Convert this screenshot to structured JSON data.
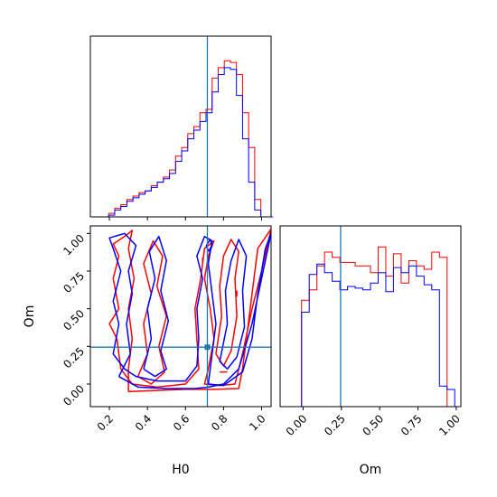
{
  "chart_data": {
    "type": "corner",
    "parameters": [
      "H0",
      "Om"
    ],
    "truth": {
      "H0": 0.715,
      "Om": 0.245,
      "color": "#1f77b4"
    },
    "series": [
      {
        "name": "",
        "color": "#ff0000"
      },
      {
        "name": "",
        "color": "#0000ff"
      }
    ],
    "panels": [
      {
        "id": "hist-H0",
        "type": "histogram",
        "xlim": [
          0.1,
          1.05
        ],
        "bin_edges": [
          0.1,
          0.132,
          0.164,
          0.196,
          0.228,
          0.26,
          0.292,
          0.324,
          0.356,
          0.388,
          0.42,
          0.452,
          0.484,
          0.516,
          0.548,
          0.58,
          0.612,
          0.644,
          0.676,
          0.708,
          0.74,
          0.772,
          0.804,
          0.836,
          0.868,
          0.9,
          0.932,
          0.964,
          0.996,
          1.028,
          1.06
        ],
        "series_values": [
          [
            0.0,
            0.0,
            0.0,
            0.02,
            0.05,
            0.07,
            0.1,
            0.12,
            0.14,
            0.15,
            0.18,
            0.2,
            0.23,
            0.27,
            0.35,
            0.4,
            0.48,
            0.52,
            0.6,
            0.62,
            0.8,
            0.86,
            0.9,
            0.89,
            0.82,
            0.6,
            0.4,
            0.1,
            0.0,
            0.0
          ],
          [
            0.0,
            0.0,
            0.0,
            0.01,
            0.04,
            0.06,
            0.09,
            0.11,
            0.13,
            0.15,
            0.17,
            0.2,
            0.22,
            0.25,
            0.32,
            0.38,
            0.45,
            0.5,
            0.55,
            0.6,
            0.72,
            0.82,
            0.86,
            0.85,
            0.7,
            0.45,
            0.2,
            0.04,
            0.0,
            0.0
          ]
        ]
      },
      {
        "id": "contour-H0-Om",
        "type": "contour",
        "xlabel": "H0",
        "ylabel": "Om",
        "xlim": [
          0.1,
          1.05
        ],
        "ylim": [
          -0.15,
          1.05
        ],
        "xticks": [
          "0.2",
          "0.4",
          "0.6",
          "0.8",
          "1.0"
        ],
        "yticks": [
          "0.00",
          "0.25",
          "0.50",
          "0.75",
          "1.00"
        ],
        "contours": [
          {
            "series": 0,
            "points": [
              [
                0.3,
                -0.05
              ],
              [
                0.5,
                -0.04
              ],
              [
                0.6,
                -0.035
              ],
              [
                0.75,
                -0.035
              ],
              [
                0.88,
                -0.03
              ],
              [
                0.9,
                0.1
              ],
              [
                0.92,
                0.3
              ],
              [
                0.95,
                0.6
              ],
              [
                0.98,
                0.9
              ],
              [
                1.05,
                1.03
              ],
              [
                1.0,
                0.75
              ],
              [
                0.95,
                0.5
              ],
              [
                0.9,
                0.2
              ],
              [
                0.86,
                0.0
              ],
              [
                0.78,
                -0.01
              ],
              [
                0.7,
                0.0
              ],
              [
                0.72,
                0.1
              ],
              [
                0.75,
                0.3
              ],
              [
                0.73,
                0.5
              ],
              [
                0.7,
                0.7
              ],
              [
                0.72,
                0.85
              ],
              [
                0.75,
                0.95
              ],
              [
                0.7,
                0.9
              ],
              [
                0.68,
                0.7
              ],
              [
                0.65,
                0.5
              ],
              [
                0.66,
                0.3
              ],
              [
                0.67,
                0.1
              ],
              [
                0.6,
                0.0
              ],
              [
                0.45,
                -0.02
              ],
              [
                0.32,
                0.0
              ],
              [
                0.26,
                0.1
              ],
              [
                0.24,
                0.3
              ],
              [
                0.2,
                0.4
              ],
              [
                0.25,
                0.5
              ],
              [
                0.22,
                0.7
              ],
              [
                0.25,
                0.85
              ],
              [
                0.22,
                0.93
              ],
              [
                0.28,
                0.98
              ],
              [
                0.32,
                1.02
              ],
              [
                0.3,
                0.9
              ],
              [
                0.33,
                0.7
              ],
              [
                0.3,
                0.5
              ],
              [
                0.32,
                0.3
              ],
              [
                0.3,
                0.1
              ],
              [
                0.3,
                -0.05
              ]
            ]
          },
          {
            "series": 0,
            "points": [
              [
                0.35,
                0.05
              ],
              [
                0.4,
                0.2
              ],
              [
                0.38,
                0.4
              ],
              [
                0.42,
                0.6
              ],
              [
                0.38,
                0.8
              ],
              [
                0.43,
                0.95
              ],
              [
                0.48,
                0.85
              ],
              [
                0.45,
                0.65
              ],
              [
                0.5,
                0.45
              ],
              [
                0.46,
                0.25
              ],
              [
                0.49,
                0.08
              ],
              [
                0.42,
                0.0
              ],
              [
                0.35,
                0.05
              ]
            ]
          },
          {
            "series": 0,
            "points": [
              [
                0.76,
                0.2
              ],
              [
                0.79,
                0.45
              ],
              [
                0.78,
                0.65
              ],
              [
                0.8,
                0.85
              ],
              [
                0.84,
                0.96
              ],
              [
                0.88,
                0.88
              ],
              [
                0.86,
                0.7
              ],
              [
                0.87,
                0.45
              ],
              [
                0.84,
                0.22
              ],
              [
                0.8,
                0.12
              ],
              [
                0.76,
                0.2
              ]
            ]
          },
          {
            "series": 1,
            "points": [
              [
                0.25,
                0.05
              ],
              [
                0.35,
                -0.02
              ],
              [
                0.5,
                -0.03
              ],
              [
                0.65,
                -0.03
              ],
              [
                0.72,
                -0.02
              ],
              [
                0.8,
                0.0
              ],
              [
                0.88,
                0.1
              ],
              [
                0.95,
                0.4
              ],
              [
                1.0,
                0.7
              ],
              [
                1.05,
                1.0
              ],
              [
                1.02,
                0.9
              ],
              [
                0.98,
                0.6
              ],
              [
                0.95,
                0.3
              ],
              [
                0.9,
                0.08
              ],
              [
                0.8,
                -0.01
              ],
              [
                0.72,
                0.0
              ],
              [
                0.74,
                0.2
              ],
              [
                0.76,
                0.4
              ],
              [
                0.74,
                0.6
              ],
              [
                0.72,
                0.8
              ],
              [
                0.74,
                0.95
              ],
              [
                0.7,
                0.98
              ],
              [
                0.66,
                0.85
              ],
              [
                0.69,
                0.7
              ],
              [
                0.66,
                0.5
              ],
              [
                0.67,
                0.3
              ],
              [
                0.66,
                0.12
              ],
              [
                0.6,
                0.02
              ],
              [
                0.45,
                0.02
              ],
              [
                0.34,
                0.05
              ],
              [
                0.28,
                0.1
              ],
              [
                0.22,
                0.2
              ],
              [
                0.25,
                0.4
              ],
              [
                0.22,
                0.55
              ],
              [
                0.26,
                0.75
              ],
              [
                0.22,
                0.9
              ],
              [
                0.2,
                0.97
              ],
              [
                0.28,
                1.0
              ],
              [
                0.34,
                0.92
              ],
              [
                0.3,
                0.75
              ],
              [
                0.32,
                0.6
              ],
              [
                0.29,
                0.4
              ],
              [
                0.31,
                0.2
              ],
              [
                0.25,
                0.05
              ]
            ]
          },
          {
            "series": 1,
            "points": [
              [
                0.38,
                0.1
              ],
              [
                0.42,
                0.3
              ],
              [
                0.4,
                0.5
              ],
              [
                0.44,
                0.7
              ],
              [
                0.41,
                0.88
              ],
              [
                0.46,
                0.98
              ],
              [
                0.5,
                0.82
              ],
              [
                0.47,
                0.62
              ],
              [
                0.51,
                0.42
              ],
              [
                0.47,
                0.22
              ],
              [
                0.5,
                0.1
              ],
              [
                0.44,
                0.05
              ],
              [
                0.38,
                0.1
              ]
            ]
          },
          {
            "series": 1,
            "points": [
              [
                0.78,
                0.15
              ],
              [
                0.82,
                0.4
              ],
              [
                0.81,
                0.62
              ],
              [
                0.84,
                0.82
              ],
              [
                0.88,
                0.96
              ],
              [
                0.92,
                0.85
              ],
              [
                0.9,
                0.62
              ],
              [
                0.91,
                0.38
              ],
              [
                0.87,
                0.18
              ],
              [
                0.82,
                0.1
              ],
              [
                0.78,
                0.15
              ]
            ]
          },
          {
            "series": 1,
            "points": [
              [
                0.72,
                0.88
              ],
              [
                0.74,
                0.92
              ],
              [
                0.73,
                0.96
              ],
              [
                0.71,
                0.92
              ],
              [
                0.72,
                0.88
              ]
            ]
          },
          {
            "series": 0,
            "points": [
              [
                0.78,
                0.08
              ],
              [
                0.82,
                0.08
              ]
            ]
          },
          {
            "series": 0,
            "points": [
              [
                0.87,
                0.58
              ],
              [
                0.87,
                0.62
              ]
            ]
          },
          {
            "series": 0,
            "points": [
              [
                0.69,
                0.81
              ],
              [
                0.69,
                0.84
              ]
            ]
          }
        ],
        "truth_marker": {
          "x": 0.715,
          "y": 0.245
        }
      },
      {
        "id": "hist-Om",
        "type": "histogram",
        "xlabel": "Om",
        "xlim": [
          -0.15,
          1.03
        ],
        "xticks": [
          "0.00",
          "0.25",
          "0.50",
          "0.75",
          "1.00"
        ],
        "bin_edges": [
          -0.06,
          -0.01,
          0.04,
          0.09,
          0.14,
          0.19,
          0.24,
          0.29,
          0.34,
          0.39,
          0.44,
          0.49,
          0.54,
          0.59,
          0.64,
          0.69,
          0.74,
          0.79,
          0.84,
          0.89,
          0.94,
          0.99
        ],
        "series_values": [
          [
            0.0,
            0.62,
            0.68,
            0.82,
            0.9,
            0.87,
            0.84,
            0.84,
            0.82,
            0.82,
            0.78,
            0.93,
            0.76,
            0.89,
            0.72,
            0.85,
            0.82,
            0.8,
            0.9,
            0.87,
            0.0
          ],
          [
            0.0,
            0.55,
            0.77,
            0.83,
            0.78,
            0.73,
            0.68,
            0.7,
            0.69,
            0.68,
            0.72,
            0.78,
            0.67,
            0.81,
            0.78,
            0.82,
            0.76,
            0.71,
            0.68,
            0.12,
            0.1
          ]
        ]
      }
    ]
  }
}
